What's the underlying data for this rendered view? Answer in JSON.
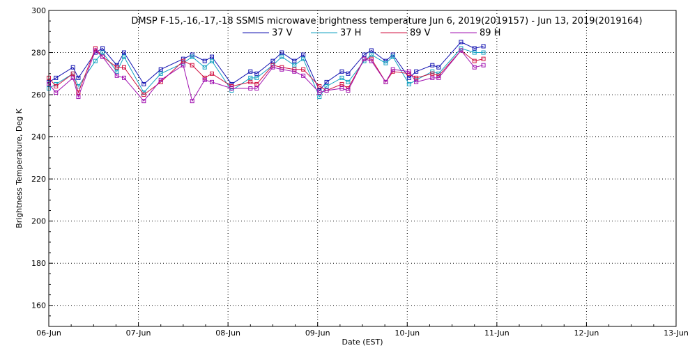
{
  "chart_data": {
    "type": "line",
    "title": "DMSP F-15,-16,-17,-18 SSMIS microwave brightness temperature Jun  6, 2019(2019157) - Jun 13, 2019(2019164)",
    "xlabel": "Date (EST)",
    "ylabel": "Brightness Temperature, Deg K",
    "x_ticks": [
      "06-Jun",
      "07-Jun",
      "08-Jun",
      "09-Jun",
      "10-Jun",
      "11-Jun",
      "12-Jun",
      "13-Jun"
    ],
    "y_ticks": [
      "160",
      "180",
      "200",
      "220",
      "240",
      "260",
      "280",
      "300"
    ],
    "xlim_days": [
      0,
      7
    ],
    "ylim": [
      150,
      300
    ],
    "grid": true,
    "legend_position": "top",
    "x_days": [
      0.0,
      0.08,
      0.27,
      0.33,
      0.52,
      0.6,
      0.76,
      0.84,
      1.06,
      1.25,
      1.5,
      1.6,
      1.74,
      1.82,
      2.04,
      2.25,
      2.32,
      2.5,
      2.6,
      2.74,
      2.84,
      3.02,
      3.1,
      3.27,
      3.34,
      3.52,
      3.6,
      3.76,
      3.84,
      4.02,
      4.1,
      4.28,
      4.35,
      4.6,
      4.75,
      4.85
    ],
    "series": [
      {
        "name": "37 V",
        "color": "#1010b0",
        "values": [
          266,
          268,
          273,
          268,
          280,
          282,
          274,
          280,
          265,
          272,
          277,
          279,
          276,
          278,
          265,
          271,
          270,
          276,
          280,
          276,
          279,
          262,
          266,
          271,
          270,
          279,
          281,
          276,
          279,
          268,
          271,
          274,
          273,
          285,
          282,
          283
        ]
      },
      {
        "name": "37 H",
        "color": "#10a0c0",
        "values": [
          263,
          265,
          270,
          264,
          276,
          280,
          271,
          278,
          261,
          270,
          275,
          278,
          273,
          276,
          262,
          268,
          268,
          274,
          278,
          274,
          277,
          259,
          264,
          268,
          266,
          276,
          279,
          275,
          278,
          265,
          267,
          271,
          270,
          282,
          280,
          280
        ]
      },
      {
        "name": "89 V",
        "color": "#d01040",
        "values": [
          268,
          264,
          270,
          261,
          282,
          278,
          273,
          273,
          260,
          266,
          276,
          274,
          268,
          270,
          264,
          266,
          265,
          274,
          273,
          272,
          272,
          264,
          262,
          265,
          263,
          277,
          277,
          266,
          271,
          270,
          268,
          270,
          269,
          281,
          276,
          277
        ]
      },
      {
        "name": "89 H",
        "color": "#a010b0",
        "values": [
          265,
          261,
          268,
          259,
          281,
          278,
          269,
          268,
          257,
          267,
          274,
          257,
          267,
          266,
          263,
          263,
          263,
          273,
          272,
          271,
          269,
          261,
          262,
          263,
          262,
          277,
          276,
          266,
          272,
          271,
          266,
          268,
          268,
          281,
          273,
          274
        ]
      }
    ]
  }
}
